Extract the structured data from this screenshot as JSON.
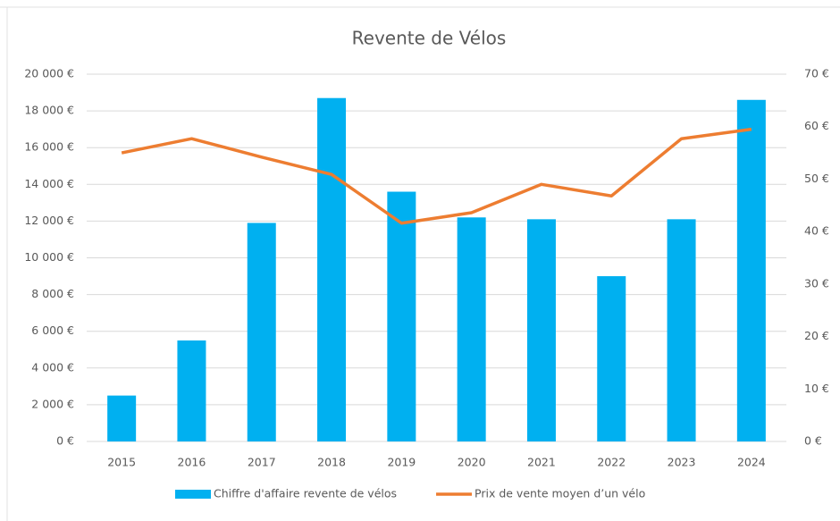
{
  "chart_data": {
    "type": "bar",
    "title": "Revente de Vélos",
    "categories": [
      "2015",
      "2016",
      "2017",
      "2018",
      "2019",
      "2020",
      "2021",
      "2022",
      "2023",
      "2024"
    ],
    "series": [
      {
        "name": "Chiffre d'affaire revente de vélos",
        "type": "bar",
        "color": "#00b0f0",
        "axis": "y",
        "values": [
          2500,
          5500,
          11900,
          18700,
          13600,
          12200,
          12100,
          9000,
          12100,
          18600
        ]
      },
      {
        "name": "Prix de vente moyen d’un vélo",
        "type": "line",
        "color": "#ed7d31",
        "axis": "y2",
        "values": [
          55,
          57.7,
          54.2,
          50.9,
          41.6,
          43.6,
          49,
          46.8,
          57.7,
          59.5
        ]
      }
    ],
    "ylim": [
      0,
      20000
    ],
    "yticks": [
      {
        "value": 0,
        "label": "0 €"
      },
      {
        "value": 2000,
        "label": "2 000 €"
      },
      {
        "value": 4000,
        "label": "4 000 €"
      },
      {
        "value": 6000,
        "label": "6 000 €"
      },
      {
        "value": 8000,
        "label": "8 000 €"
      },
      {
        "value": 10000,
        "label": "10 000 €"
      },
      {
        "value": 12000,
        "label": "12 000 €"
      },
      {
        "value": 14000,
        "label": "14 000 €"
      },
      {
        "value": 16000,
        "label": "16 000 €"
      },
      {
        "value": 18000,
        "label": "18 000 €"
      },
      {
        "value": 20000,
        "label": "20 000 €"
      }
    ],
    "y2lim": [
      0,
      70
    ],
    "y2ticks": [
      {
        "value": 0,
        "label": "0 €"
      },
      {
        "value": 10,
        "label": "10 €"
      },
      {
        "value": 20,
        "label": "20 €"
      },
      {
        "value": 30,
        "label": "30 €"
      },
      {
        "value": 40,
        "label": "40 €"
      },
      {
        "value": 50,
        "label": "50 €"
      },
      {
        "value": 60,
        "label": "60 €"
      },
      {
        "value": 70,
        "label": "70 €"
      }
    ],
    "grid": true,
    "legend": "bottom"
  }
}
